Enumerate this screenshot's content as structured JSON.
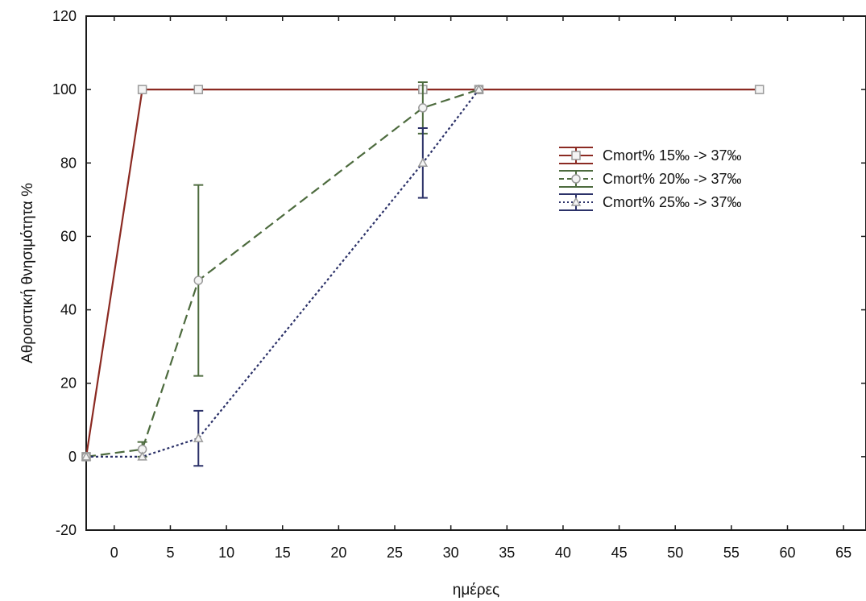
{
  "chart_data": {
    "type": "line",
    "xlabel": "ημέρες",
    "ylabel": "Αθροιστική θνησιμότητα %",
    "xlim": [
      -2.5,
      67
    ],
    "ylim": [
      -20,
      120
    ],
    "xticks": [
      0,
      5,
      10,
      15,
      20,
      25,
      30,
      35,
      40,
      45,
      50,
      55,
      60,
      65
    ],
    "yticks": [
      -20,
      0,
      20,
      40,
      60,
      80,
      100,
      120
    ],
    "legend_position": "right",
    "grid": false,
    "series": [
      {
        "name": "Cmort% 15‰ -> 37‰",
        "color": "#8b2a22",
        "line_style": "solid",
        "marker": "square",
        "x": [
          -2.5,
          2.5,
          7.5,
          27.5,
          32.5,
          57.5
        ],
        "y": [
          0,
          100,
          100,
          100,
          100,
          100
        ],
        "error": [
          0,
          0,
          0,
          0,
          0,
          0
        ]
      },
      {
        "name": "Cmort% 20‰ -> 37‰",
        "color": "#4d6b3e",
        "line_style": "dashed",
        "marker": "circle",
        "x": [
          -2.5,
          2.5,
          7.5,
          27.5,
          32.5
        ],
        "y": [
          0,
          2,
          48,
          95,
          100
        ],
        "error": [
          0,
          2,
          26,
          7,
          0
        ]
      },
      {
        "name": "Cmort% 25‰ -> 37‰",
        "color": "#2b3168",
        "line_style": "dotted",
        "marker": "triangle",
        "x": [
          -2.5,
          2.5,
          7.5,
          27.5,
          32.5
        ],
        "y": [
          0,
          0,
          5,
          80,
          100
        ],
        "error": [
          0,
          0,
          7.5,
          9.5,
          0
        ]
      }
    ]
  }
}
